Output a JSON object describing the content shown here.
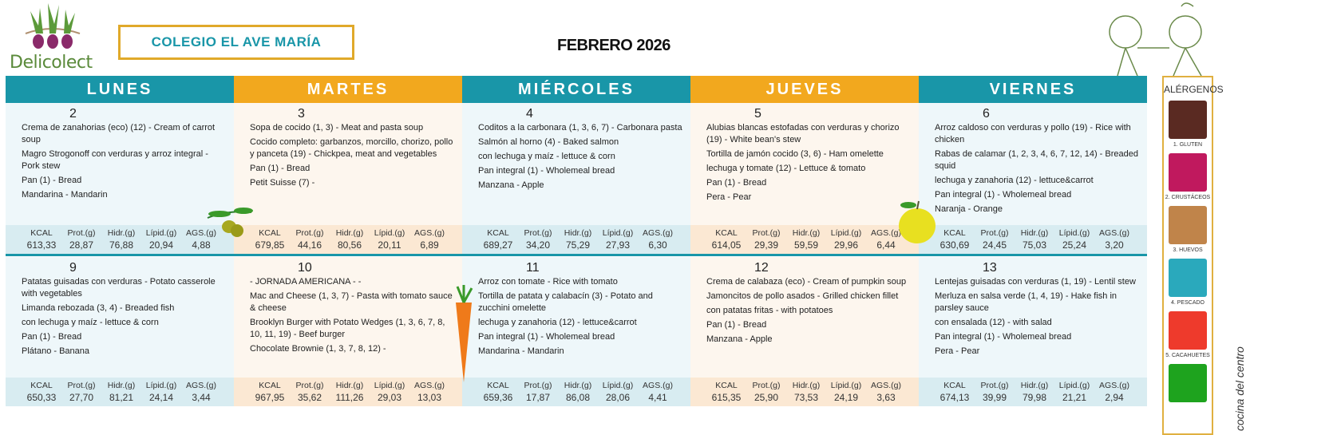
{
  "header": {
    "brand": "Delicolect",
    "school": "COLEGIO EL AVE MARÍA",
    "month": "FEBRERO 2026"
  },
  "colors": {
    "teal": "#1996a8",
    "orange": "#f2a81e",
    "teal_bg": "#eef7fa",
    "orange_bg": "#fdf6ee",
    "teal_nut": "#d8ecf1",
    "orange_nut": "#fbe8d3"
  },
  "days": [
    "LUNES",
    "MARTES",
    "MIÉRCOLES",
    "JUEVES",
    "VIERNES"
  ],
  "nutrition_labels": [
    "KCAL",
    "Prot.(g)",
    "Hidr.(g)",
    "Lípid.(g)",
    "AGS.(g)"
  ],
  "weeks": [
    [
      {
        "day": "2",
        "items": [
          "Crema de zanahorias (eco) (12) - Cream of carrot soup",
          "Magro Strogonoff con verduras y arroz integral  - Pork stew",
          "Pan (1) - Bread",
          "Mandarina  - Mandarin"
        ],
        "nutrition": [
          "613,33",
          "28,87",
          "76,88",
          "20,94",
          "4,88"
        ]
      },
      {
        "day": "3",
        "items": [
          "Sopa de cocido (1, 3) - Meat and pasta soup",
          "Cocido completo: garbanzos, morcillo, chorizo, pollo y panceta (19) - Chickpea, meat and vegetables",
          "Pan (1) - Bread",
          "Petit Suisse (7) -"
        ],
        "nutrition": [
          "679,85",
          "44,16",
          "80,56",
          "20,11",
          "6,89"
        ]
      },
      {
        "day": "4",
        "items": [
          "Coditos a la carbonara (1, 3, 6, 7) - Carbonara pasta",
          "Salmón al horno (4) - Baked salmon",
          "con lechuga y maíz  - lettuce & corn",
          "Pan integral (1) - Wholemeal bread",
          "Manzana  - Apple"
        ],
        "nutrition": [
          "689,27",
          "34,20",
          "75,29",
          "27,93",
          "6,30"
        ]
      },
      {
        "day": "5",
        "items": [
          "Alubias blancas estofadas con verduras y chorizo (19) - White bean's stew",
          "Tortilla de jamón cocido (3, 6) - Ham omelette",
          "lechuga y tomate (12) - Lettuce & tomato",
          "Pan (1) - Bread",
          "Pera  - Pear"
        ],
        "nutrition": [
          "614,05",
          "29,39",
          "59,59",
          "29,96",
          "6,44"
        ]
      },
      {
        "day": "6",
        "items": [
          "Arroz caldoso con verduras y pollo (19) - Rice with chicken",
          "Rabas de calamar (1, 2, 3, 4, 6, 7, 12, 14) - Breaded squid",
          "lechuga y zanahoria (12) - lettuce&carrot",
          "Pan integral (1) - Wholemeal bread",
          "Naranja  - Orange"
        ],
        "nutrition": [
          "630,69",
          "24,45",
          "75,03",
          "25,24",
          "3,20"
        ]
      }
    ],
    [
      {
        "day": "9",
        "items": [
          "Patatas guisadas con verduras  - Potato casserole with vegetables",
          "Limanda rebozada (3, 4) - Breaded fish",
          "con lechuga y maíz  - lettuce & corn",
          "Pan (1) - Bread",
          "Plátano  - Banana"
        ],
        "nutrition": [
          "650,33",
          "27,70",
          "81,21",
          "24,14",
          "3,44"
        ]
      },
      {
        "day": "10",
        "items": [
          "- JORNADA AMERICANA -  -",
          "Mac and Cheese (1, 3, 7) - Pasta with tomato sauce & cheese",
          "Brooklyn Burger with Potato Wedges (1, 3, 6, 7, 8, 10, 11, 19) - Beef burger",
          "Chocolate Brownie (1, 3, 7, 8, 12) -"
        ],
        "nutrition": [
          "967,95",
          "35,62",
          "111,26",
          "29,03",
          "13,03"
        ]
      },
      {
        "day": "11",
        "items": [
          "Arroz con tomate  - Rice with tomato",
          "Tortilla de patata y calabacín (3) - Potato and zucchini omelette",
          "lechuga y zanahoria (12) - lettuce&carrot",
          "Pan integral (1) - Wholemeal bread",
          "Mandarina  - Mandarin"
        ],
        "nutrition": [
          "659,36",
          "17,87",
          "86,08",
          "28,06",
          "4,41"
        ]
      },
      {
        "day": "12",
        "items": [
          "Crema de calabaza (eco)  - Cream of pumpkin soup",
          "Jamoncitos de pollo asados  - Grilled chicken fillet",
          "con patatas fritas  - with potatoes",
          "Pan (1) - Bread",
          "Manzana  - Apple"
        ],
        "nutrition": [
          "615,35",
          "25,90",
          "73,53",
          "24,19",
          "3,63"
        ]
      },
      {
        "day": "13",
        "items": [
          "Lentejas guisadas con verduras (1, 19) - Lentil stew",
          "Merluza en salsa verde (1, 4, 19) - Hake fish in parsley sauce",
          "con ensalada (12) - with salad",
          "Pan integral (1) - Wholemeal bread",
          "Pera  - Pear"
        ],
        "nutrition": [
          "674,13",
          "39,99",
          "79,98",
          "21,21",
          "2,94"
        ]
      }
    ]
  ],
  "allergens": {
    "title": "ALÉRGENOS",
    "items": [
      {
        "label": "1. GLUTEN",
        "color": "#5a2a22",
        "icon": "wheat-icon"
      },
      {
        "label": "2. CRUSTÁCEOS",
        "color": "#c0195e",
        "icon": "lobster-icon"
      },
      {
        "label": "3. HUEVOS",
        "color": "#c0844a",
        "icon": "eggs-icon"
      },
      {
        "label": "4. PESCADO",
        "color": "#2aa9bc",
        "icon": "fish-icon"
      },
      {
        "label": "5. CACAHUETES",
        "color": "#ee3a2c",
        "icon": "peanut-icon"
      },
      {
        "label": "",
        "color": "#1ea31e",
        "icon": "plant-icon"
      }
    ]
  },
  "footer_side": "cocina del centro"
}
